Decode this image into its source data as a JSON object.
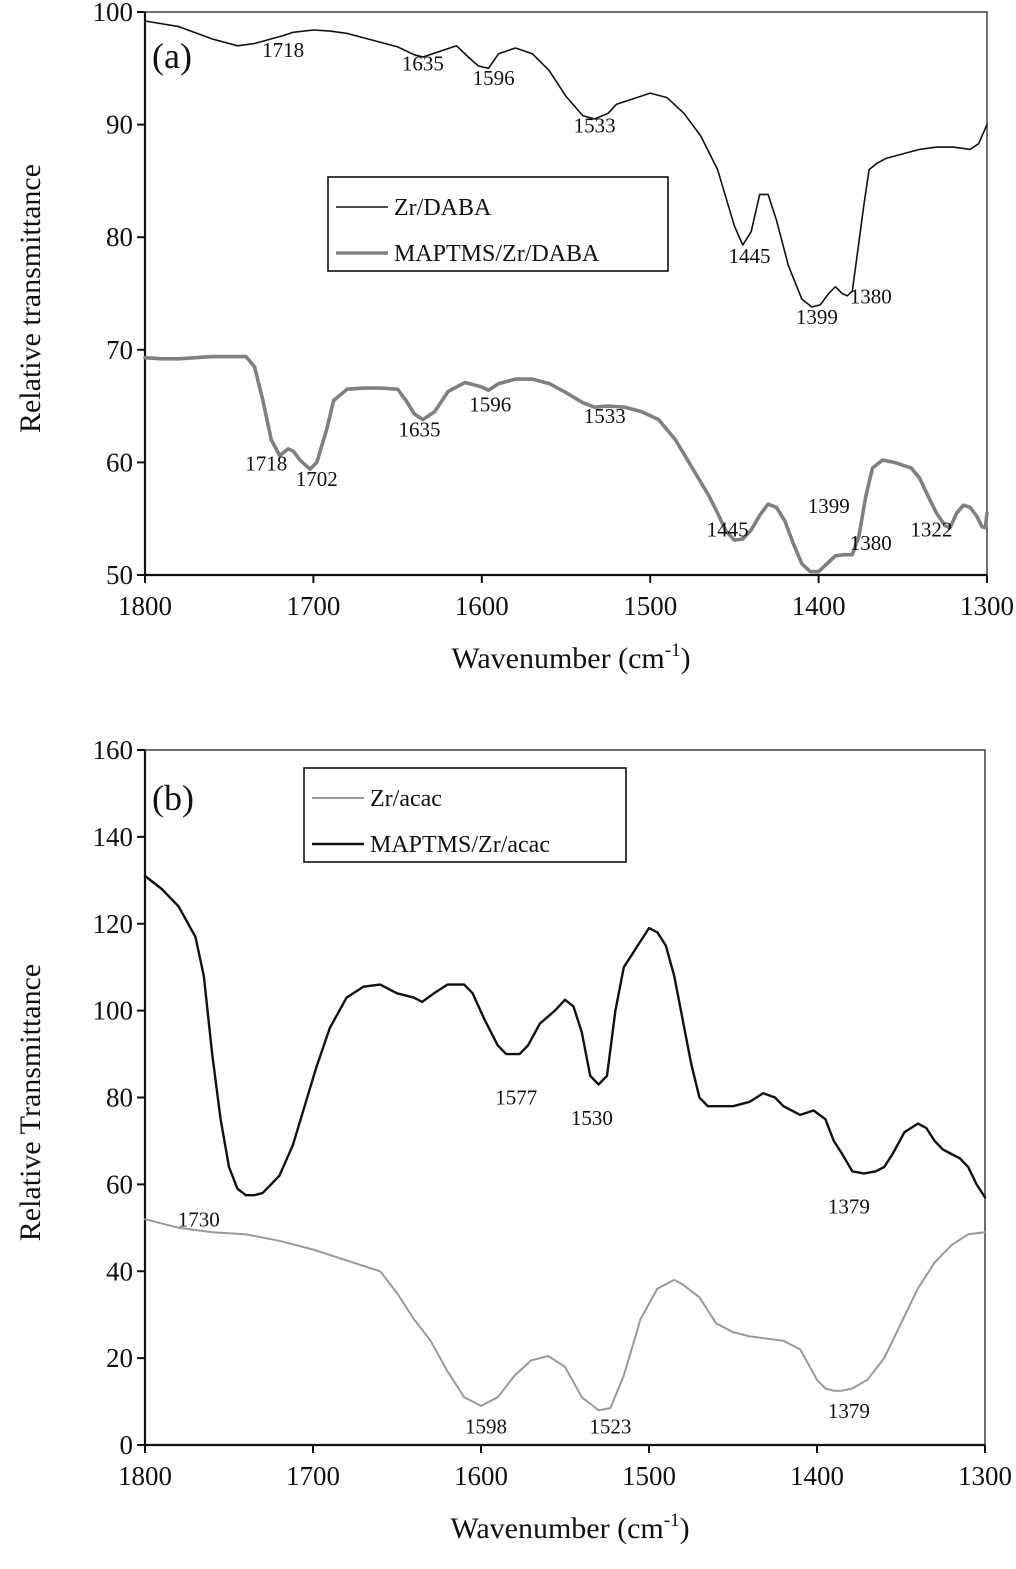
{
  "chart_data": [
    {
      "type": "line",
      "panel_label": "(a)",
      "xlabel": "Wavenumber (cm",
      "xlabel_sup": "-1",
      "xlabel_end": ")",
      "ylabel": "Relative transmittance",
      "xlim": [
        1800,
        1300
      ],
      "ylim": [
        50,
        100
      ],
      "xticks": [
        1800,
        1700,
        1600,
        1500,
        1400,
        1300
      ],
      "yticks": [
        50,
        60,
        70,
        80,
        90,
        100
      ],
      "legend_position": "center",
      "series": [
        {
          "name": "Zr/DABA",
          "color": "#111111",
          "x": [
            1800,
            1780,
            1760,
            1745,
            1735,
            1718,
            1712,
            1700,
            1690,
            1680,
            1670,
            1660,
            1650,
            1640,
            1635,
            1625,
            1615,
            1608,
            1602,
            1596,
            1590,
            1580,
            1570,
            1560,
            1550,
            1540,
            1533,
            1525,
            1520,
            1510,
            1500,
            1490,
            1480,
            1470,
            1460,
            1455,
            1450,
            1445,
            1440,
            1435,
            1430,
            1425,
            1418,
            1410,
            1404,
            1399,
            1394,
            1390,
            1386,
            1383,
            1380,
            1377,
            1373,
            1370,
            1365,
            1360,
            1350,
            1340,
            1330,
            1320,
            1310,
            1305,
            1300
          ],
          "y": [
            99.2,
            98.7,
            97.6,
            97.0,
            97.2,
            97.9,
            98.2,
            98.4,
            98.3,
            98.1,
            97.7,
            97.3,
            96.9,
            96.2,
            96.0,
            96.5,
            97.0,
            96.0,
            95.2,
            95.0,
            96.3,
            96.8,
            96.3,
            94.8,
            92.5,
            90.8,
            90.5,
            91.0,
            91.8,
            92.3,
            92.8,
            92.4,
            91.0,
            89.0,
            86.0,
            83.5,
            81.0,
            79.3,
            80.5,
            83.8,
            83.8,
            81.5,
            77.5,
            74.5,
            73.8,
            74.0,
            75.0,
            75.6,
            75.0,
            74.8,
            75.2,
            78.5,
            83.0,
            86.0,
            86.6,
            87.0,
            87.4,
            87.8,
            88.0,
            88.0,
            87.8,
            88.3,
            90.0
          ]
        },
        {
          "name": "MAPTMS/Zr/DABA",
          "color": "#808080",
          "x": [
            1800,
            1790,
            1780,
            1770,
            1760,
            1750,
            1740,
            1735,
            1730,
            1725,
            1720,
            1715,
            1712,
            1708,
            1702,
            1698,
            1692,
            1688,
            1680,
            1670,
            1660,
            1650,
            1645,
            1640,
            1635,
            1628,
            1620,
            1610,
            1600,
            1596,
            1590,
            1580,
            1570,
            1560,
            1550,
            1540,
            1533,
            1525,
            1515,
            1505,
            1495,
            1485,
            1475,
            1465,
            1460,
            1455,
            1450,
            1445,
            1440,
            1435,
            1430,
            1425,
            1420,
            1415,
            1410,
            1405,
            1400,
            1395,
            1390,
            1385,
            1380,
            1376,
            1372,
            1368,
            1362,
            1355,
            1345,
            1340,
            1335,
            1330,
            1325,
            1322,
            1318,
            1314,
            1310,
            1306,
            1303,
            1301,
            1300
          ],
          "y": [
            69.3,
            69.2,
            69.2,
            69.3,
            69.4,
            69.4,
            69.4,
            68.5,
            65.5,
            62.0,
            60.6,
            61.2,
            61.0,
            60.2,
            59.4,
            60.0,
            63.0,
            65.5,
            66.5,
            66.6,
            66.6,
            66.5,
            65.5,
            64.3,
            63.8,
            64.5,
            66.3,
            67.1,
            66.7,
            66.4,
            67.0,
            67.4,
            67.4,
            67.0,
            66.2,
            65.3,
            64.9,
            65.0,
            64.9,
            64.5,
            63.8,
            62.0,
            59.5,
            57.0,
            55.5,
            53.9,
            53.1,
            53.2,
            54.0,
            55.3,
            56.3,
            56.0,
            54.8,
            52.8,
            51.0,
            50.3,
            50.3,
            51.0,
            51.7,
            51.8,
            51.8,
            53.5,
            57.0,
            59.5,
            60.2,
            60.0,
            59.5,
            58.6,
            57.0,
            55.5,
            54.4,
            54.2,
            55.5,
            56.2,
            56.0,
            55.2,
            54.3,
            54.2,
            55.5
          ]
        }
      ],
      "annotations": [
        {
          "text": "1718",
          "x": 1718,
          "y": 96.0
        },
        {
          "text": "1635",
          "x": 1635,
          "y": 94.8
        },
        {
          "text": "1596",
          "x": 1593,
          "y": 93.5
        },
        {
          "text": "1533",
          "x": 1533,
          "y": 89.3
        },
        {
          "text": "1445",
          "x": 1441,
          "y": 77.7
        },
        {
          "text": "1399",
          "x": 1401,
          "y": 72.3
        },
        {
          "text": "1380",
          "x": 1369,
          "y": 74.1
        },
        {
          "text": "1718",
          "x": 1728,
          "y": 59.3
        },
        {
          "text": "1702",
          "x": 1698,
          "y": 57.9
        },
        {
          "text": "1635",
          "x": 1637,
          "y": 62.3
        },
        {
          "text": "1596",
          "x": 1595,
          "y": 64.5
        },
        {
          "text": "1533",
          "x": 1527,
          "y": 63.5
        },
        {
          "text": "1445",
          "x": 1454,
          "y": 53.4
        },
        {
          "text": "1399",
          "x": 1394,
          "y": 55.5
        },
        {
          "text": "1380",
          "x": 1369,
          "y": 52.2
        },
        {
          "text": "1322",
          "x": 1333,
          "y": 53.4
        }
      ]
    },
    {
      "type": "line",
      "panel_label": "(b)",
      "xlabel": "Wavenumber (cm",
      "xlabel_sup": "-1",
      "xlabel_end": ")",
      "ylabel": "Relative Transmittance",
      "xlim": [
        1800,
        1300
      ],
      "ylim": [
        0,
        160
      ],
      "xticks": [
        1800,
        1700,
        1600,
        1500,
        1400,
        1300
      ],
      "yticks": [
        0,
        20,
        40,
        60,
        80,
        100,
        120,
        140,
        160
      ],
      "legend_position": "top-left",
      "series": [
        {
          "name": "Zr/acac",
          "color": "#999999",
          "x": [
            1800,
            1780,
            1760,
            1740,
            1720,
            1700,
            1680,
            1660,
            1650,
            1640,
            1630,
            1620,
            1610,
            1600,
            1590,
            1580,
            1570,
            1560,
            1550,
            1540,
            1530,
            1523,
            1515,
            1505,
            1495,
            1485,
            1480,
            1470,
            1460,
            1450,
            1440,
            1430,
            1420,
            1410,
            1400,
            1395,
            1390,
            1385,
            1379,
            1370,
            1360,
            1350,
            1340,
            1330,
            1320,
            1310,
            1300
          ],
          "y": [
            52,
            50,
            49,
            48.5,
            47,
            45,
            42.5,
            40,
            35,
            29,
            24,
            17,
            11,
            9,
            11,
            16,
            19.5,
            20.5,
            18,
            11,
            8,
            8.5,
            16,
            29,
            36,
            38,
            37,
            34,
            28,
            26,
            25,
            24.5,
            24,
            22,
            15,
            13,
            12.5,
            12.5,
            13,
            15,
            20,
            28,
            36,
            42,
            46,
            48.5,
            49
          ]
        },
        {
          "name": "MAPTMS/Zr/acac",
          "color": "#111111",
          "x": [
            1800,
            1790,
            1780,
            1770,
            1765,
            1760,
            1755,
            1750,
            1745,
            1740,
            1735,
            1730,
            1725,
            1720,
            1712,
            1705,
            1698,
            1690,
            1680,
            1670,
            1660,
            1650,
            1640,
            1635,
            1628,
            1620,
            1610,
            1605,
            1598,
            1590,
            1585,
            1577,
            1572,
            1565,
            1556,
            1550,
            1545,
            1540,
            1535,
            1530,
            1525,
            1520,
            1515,
            1510,
            1505,
            1500,
            1495,
            1490,
            1485,
            1480,
            1475,
            1470,
            1465,
            1460,
            1450,
            1440,
            1432,
            1425,
            1420,
            1410,
            1402,
            1395,
            1390,
            1385,
            1379,
            1372,
            1365,
            1360,
            1355,
            1348,
            1340,
            1335,
            1330,
            1325,
            1320,
            1315,
            1310,
            1305,
            1300
          ],
          "y": [
            131,
            128,
            124,
            117,
            108,
            90,
            75,
            64,
            59,
            57.5,
            57.5,
            58,
            60,
            62,
            69,
            78,
            87,
            96,
            103,
            105.5,
            106,
            104,
            103,
            102,
            104,
            106,
            106,
            104,
            98,
            92,
            90,
            90,
            92,
            97,
            100,
            102.5,
            101,
            95,
            85,
            83,
            85,
            100,
            110,
            113,
            116,
            119,
            118,
            115,
            108,
            98,
            88,
            80,
            78,
            78,
            78,
            79,
            81,
            80,
            78,
            76,
            77,
            75,
            70,
            67,
            63,
            62.5,
            63,
            64,
            67,
            72,
            74,
            73,
            70,
            68,
            67,
            66,
            64,
            60,
            57
          ]
        }
      ],
      "annotations": [
        {
          "text": "1730",
          "x": 1768,
          "y": 50.3
        },
        {
          "text": "1577",
          "x": 1579,
          "y": 78.4
        },
        {
          "text": "1530",
          "x": 1534,
          "y": 73.7
        },
        {
          "text": "1379",
          "x": 1381,
          "y": 53.3
        },
        {
          "text": "1598",
          "x": 1597,
          "y": 2.7
        },
        {
          "text": "1523",
          "x": 1523,
          "y": 2.7
        },
        {
          "text": "1379",
          "x": 1381,
          "y": 6.2
        }
      ]
    }
  ]
}
